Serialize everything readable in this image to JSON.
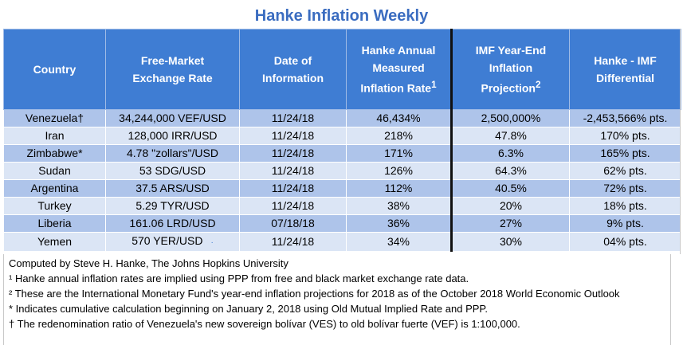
{
  "title": "Hanke Inflation Weekly",
  "headers": [
    [
      "Country"
    ],
    [
      "Free-Market",
      "Exchange Rate"
    ],
    [
      "Date of",
      "Information"
    ],
    [
      "Hanke Annual",
      "Measured",
      "Inflation Rate"
    ],
    [
      "IMF Year-End",
      "Inflation",
      "Projection"
    ],
    [
      "Hanke - IMF",
      "Differential"
    ]
  ],
  "header_superscripts": {
    "h3": "1",
    "h4": "2"
  },
  "rows": [
    {
      "country": "Venezuela†",
      "rate": "34,244,000 VEF/USD",
      "date": "11/24/18",
      "hanke": "46,434%",
      "imf": "2,500,000%",
      "diff": "-2,453,566% pts."
    },
    {
      "country": "Iran",
      "rate": "128,000 IRR/USD",
      "date": "11/24/18",
      "hanke": "218%",
      "imf": "47.8%",
      "diff": "170% pts."
    },
    {
      "country": "Zimbabwe*",
      "rate": "4.78 \"zollars\"/USD",
      "date": "11/24/18",
      "hanke": "171%",
      "imf": "6.3%",
      "diff": "165% pts."
    },
    {
      "country": "Sudan",
      "rate": "53 SDG/USD",
      "date": "11/24/18",
      "hanke": "126%",
      "imf": "64.3%",
      "diff": "62% pts."
    },
    {
      "country": "Argentina",
      "rate": "37.5 ARS/USD",
      "date": "11/24/18",
      "hanke": "112%",
      "imf": "40.5%",
      "diff": "72% pts."
    },
    {
      "country": "Turkey",
      "rate": "5.29 TYR/USD",
      "date": "11/24/18",
      "hanke": "38%",
      "imf": "20%",
      "diff": "18% pts."
    },
    {
      "country": "Liberia",
      "rate": "161.06 LRD/USD",
      "date": "07/18/18",
      "hanke": "36%",
      "imf": "27%",
      "diff": "9% pts."
    },
    {
      "country": "Yemen",
      "rate": "570 YER/USD",
      "date": "11/24/18",
      "hanke": "34%",
      "imf": "30%",
      "diff": "04% pts."
    }
  ],
  "notes": [
    "Computed by Steve H. Hanke, The Johns Hopkins University",
    "¹ Hanke annual inflation rates are implied using PPP from free and black market exchange rate data.",
    "² These are the International Monetary Fund's year-end inflation projections for 2018 as of the October 2018 World Economic Outlook",
    "* Indicates cumulative calculation beginning on January 2, 2018 using Old Mutual Implied Rate and PPP.",
    "† The redenomination ratio of Venezuela's new sovereign bolívar (VES) to old bolívar fuerte (VEF) is 1:100,000."
  ],
  "colors": {
    "title": "#3a6cc0",
    "header_bg": "#3f7dd3",
    "row_dark": "#aec4ea",
    "row_light": "#dbe5f5"
  }
}
